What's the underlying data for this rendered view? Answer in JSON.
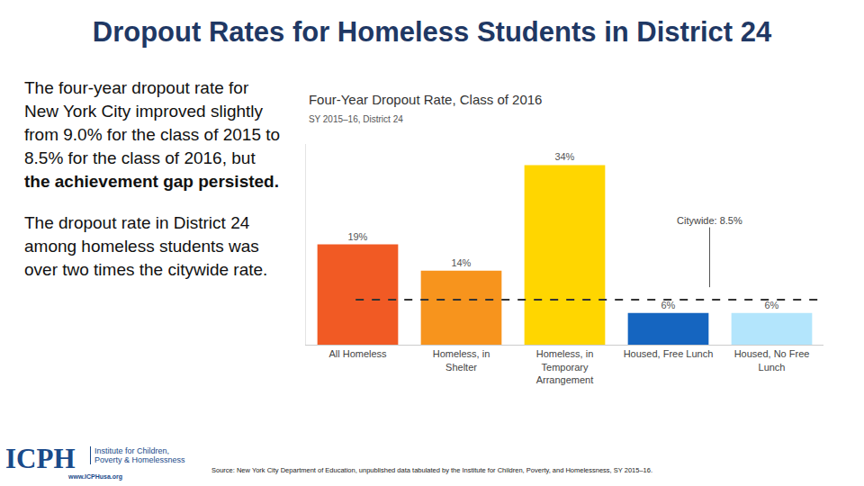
{
  "slide": {
    "title": "Dropout Rates for Homeless Students in District 24",
    "paragraphs": [
      [
        {
          "text": "The four-year dropout rate for New York City improved slightly from 9.0% for the class of 2015 to 8.5% for the class of 2016, but ",
          "bold": false
        },
        {
          "text": "the achievement gap persisted.",
          "bold": true
        }
      ],
      [
        {
          "text": "The dropout rate in District 24 among homeless students was over two times the citywide rate.",
          "bold": false
        }
      ]
    ],
    "logo": {
      "name": "ICPH",
      "lines": [
        "Institute for Children,",
        "Poverty & Homelessness"
      ],
      "url": "www.ICPHusa.org"
    },
    "source": "Source: New York City Department of Education, unpublished data tabulated by the Institute for Children, Poverty, and Homelessness, SY 2015–16."
  },
  "chart_data": {
    "type": "bar",
    "title": "Four-Year Dropout Rate, Class of 2016",
    "subtitle": "SY 2015–16, District 24",
    "categories": [
      "All Homeless",
      "Homeless, in\nShelter",
      "Homeless, in\nTemporary\nArrangement",
      "Housed, Free Lunch",
      "Housed, No Free\nLunch"
    ],
    "values": [
      19,
      14,
      34,
      6,
      6
    ],
    "value_labels": [
      "19%",
      "14%",
      "34%",
      "6%",
      "6%"
    ],
    "colors": [
      "#f15a24",
      "#f7941d",
      "#ffd600",
      "#1565c0",
      "#b3e5fc"
    ],
    "ylim": [
      0,
      38
    ],
    "tick_labels": "x",
    "grid": false,
    "data_labels": true,
    "reference_line": {
      "value": 8.5,
      "label": "Citywide: 8.5%",
      "line_style": "dashed"
    }
  }
}
